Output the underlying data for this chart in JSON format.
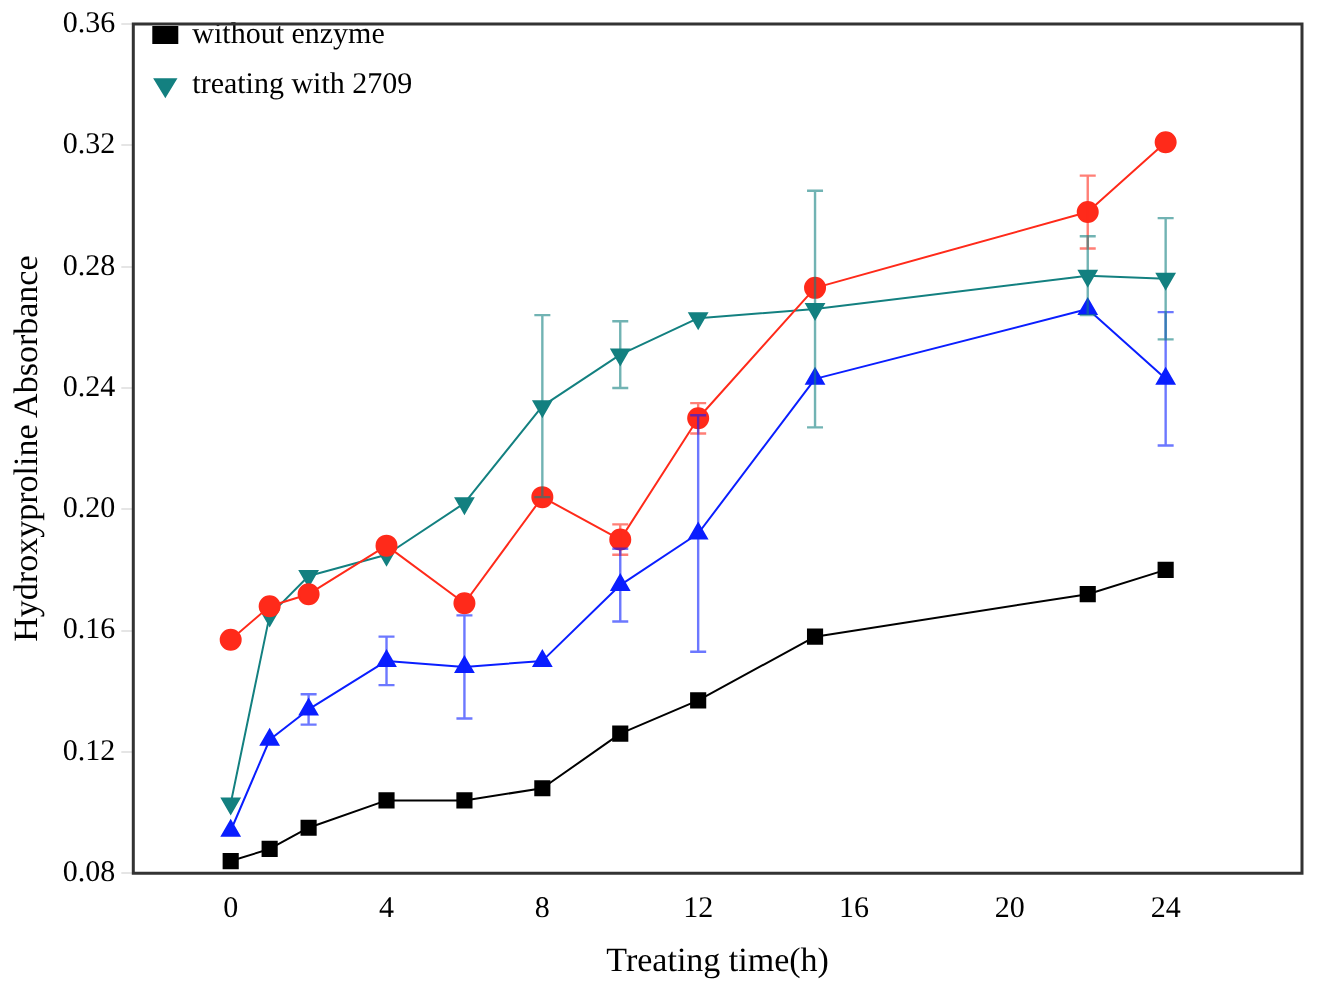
{
  "chart_data": {
    "type": "line",
    "xlabel": "Treating time(h)",
    "ylabel": "Hydroxyproline Absorbance",
    "x": [
      0,
      1,
      2,
      4,
      6,
      8,
      10,
      12,
      15,
      22,
      24
    ],
    "xlim": [
      -2.5,
      27.5
    ],
    "xticks": [
      0,
      4,
      8,
      12,
      16,
      20,
      24
    ],
    "ylim": [
      0.08,
      0.36
    ],
    "yticks": [
      {
        "value": 0.08,
        "label": "0.08"
      },
      {
        "value": 0.12,
        "label": "0.12"
      },
      {
        "value": 0.16,
        "label": "0.16"
      },
      {
        "value": 0.2,
        "label": "0.20"
      },
      {
        "value": 0.24,
        "label": "0.24"
      },
      {
        "value": 0.28,
        "label": "0.28"
      },
      {
        "value": 0.32,
        "label": "0.32"
      },
      {
        "value": 0.36,
        "label": "0.36"
      }
    ],
    "grid": false,
    "legend": "top left",
    "series": [
      {
        "name": "without enzyme",
        "color": "#000000",
        "marker": "square",
        "values": [
          0.084,
          0.088,
          0.095,
          0.104,
          0.104,
          0.108,
          0.126,
          0.137,
          0.158,
          0.172,
          0.18
        ]
      },
      {
        "color": "#ff2a1a",
        "marker": "circle",
        "values": [
          0.157,
          0.168,
          0.172,
          0.188,
          0.169,
          0.204,
          0.19,
          0.23,
          0.273,
          0.298,
          0.321
        ],
        "errors": [
          null,
          null,
          null,
          null,
          null,
          null,
          0.005,
          0.005,
          null,
          0.012,
          null
        ]
      },
      {
        "color": "#0a1eff",
        "marker": "triangle",
        "values": [
          0.094,
          0.124,
          0.134,
          0.15,
          0.148,
          0.15,
          0.175,
          0.192,
          0.243,
          0.266,
          0.243
        ],
        "errors": [
          null,
          null,
          0.005,
          0.008,
          0.017,
          null,
          0.012,
          0.039,
          null,
          null,
          0.022
        ]
      },
      {
        "name": "treating with 2709",
        "color": "#138080",
        "marker": "triangle-down",
        "values": [
          0.103,
          0.165,
          0.178,
          0.185,
          0.202,
          0.234,
          0.251,
          0.263,
          0.266,
          0.277,
          0.276
        ],
        "errors": [
          null,
          null,
          null,
          null,
          null,
          0.03,
          0.011,
          null,
          0.039,
          0.013,
          0.02
        ]
      }
    ]
  }
}
